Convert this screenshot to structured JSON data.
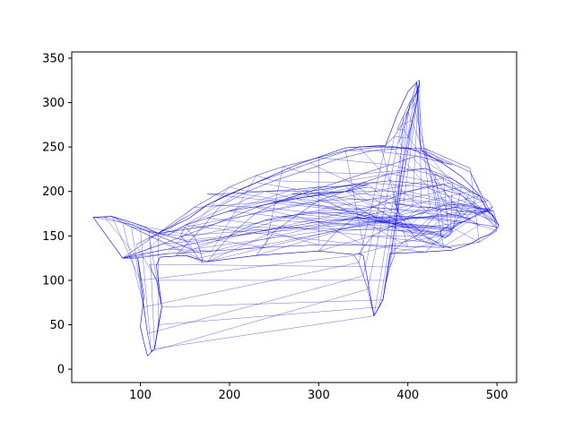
{
  "chart_data": {
    "type": "line",
    "title": "",
    "xlabel": "",
    "ylabel": "",
    "xlim": [
      23,
      522
    ],
    "ylim": [
      -15,
      357
    ],
    "x_ticks": [
      100,
      200,
      300,
      400,
      500
    ],
    "y_ticks": [
      0,
      50,
      100,
      150,
      200,
      250,
      300,
      350
    ],
    "x_tick_labels": [
      "100",
      "200",
      "300",
      "400",
      "500"
    ],
    "y_tick_labels": [
      "0",
      "50",
      "100",
      "150",
      "200",
      "250",
      "300",
      "350"
    ],
    "grid": false,
    "series": [
      {
        "color": "#0000ff",
        "style": "triangulated wireframe mesh",
        "outline": [
          [
            47,
            171
          ],
          [
            80,
            125
          ],
          [
            97,
            125
          ],
          [
            104,
            82
          ],
          [
            100,
            48
          ],
          [
            104,
            30
          ],
          [
            108,
            15
          ],
          [
            116,
            23
          ],
          [
            124,
            70
          ],
          [
            118,
            117
          ],
          [
            122,
            126
          ],
          [
            150,
            128
          ],
          [
            175,
            121
          ],
          [
            230,
            128
          ],
          [
            300,
            133
          ],
          [
            340,
            129
          ],
          [
            345,
            130
          ],
          [
            350,
            128
          ],
          [
            362,
            60
          ],
          [
            372,
            78
          ],
          [
            380,
            130
          ],
          [
            420,
            132
          ],
          [
            450,
            134
          ],
          [
            470,
            141
          ],
          [
            480,
            147
          ],
          [
            492,
            152
          ],
          [
            500,
            158
          ],
          [
            502,
            162
          ],
          [
            496,
            172
          ],
          [
            488,
            180
          ],
          [
            480,
            196
          ],
          [
            470,
            207
          ],
          [
            460,
            217
          ],
          [
            440,
            231
          ],
          [
            415,
            246
          ],
          [
            413,
            262
          ],
          [
            410,
            323
          ],
          [
            400,
            312
          ],
          [
            388,
            286
          ],
          [
            375,
            252
          ],
          [
            330,
            249
          ],
          [
            275,
            230
          ],
          [
            230,
            210
          ],
          [
            195,
            195
          ],
          [
            175,
            185
          ],
          [
            155,
            170
          ],
          [
            120,
            153
          ],
          [
            100,
            162
          ],
          [
            68,
            172
          ],
          [
            47,
            171
          ]
        ],
        "mesh": [
          {
            "x": [
              80,
              120,
              175,
              230,
              290,
              345,
              380,
              420,
              470,
              500
            ],
            "y": [
              125,
              153,
              185,
              210,
              232,
              250,
              251,
              245,
              222,
              162
            ]
          },
          {
            "x": [
              80,
              125,
              180,
              230,
              290,
              340,
              380,
              420,
              460,
              495
            ],
            "y": [
              125,
              141,
              162,
              182,
              200,
              208,
              212,
              208,
              196,
              167
            ]
          },
          {
            "x": [
              80,
              130,
              180,
              240,
              300,
              345,
              390,
              430,
              470,
              500
            ],
            "y": [
              125,
              135,
              146,
              156,
              166,
              170,
              172,
              170,
              165,
              160
            ]
          },
          {
            "x": [
              97,
              130,
              180,
              240,
              300,
              350,
              400,
              440,
              480,
              500
            ],
            "y": [
              125,
              130,
              133,
              137,
              140,
              140,
              138,
              137,
              143,
              156
            ]
          },
          {
            "x": [
              120,
              160,
              200,
              230,
              260,
              300,
              330,
              370,
              420,
              470
            ],
            "y": [
              153,
              182,
              205,
              218,
              228,
              238,
              246,
              250,
              248,
              226
            ]
          },
          {
            "x": [
              140,
              170,
              190,
              220,
              250,
              280,
              320,
              360,
              400,
              440
            ],
            "y": [
              128,
              160,
              184,
              200,
              212,
              222,
              236,
              246,
              249,
              233
            ]
          },
          {
            "x": [
              175,
              200,
              230,
              260,
              290,
              320,
              350,
              380,
              410,
              450
            ],
            "y": [
              121,
              150,
              176,
              190,
              200,
              210,
              220,
              230,
              240,
              230
            ]
          },
          {
            "x": [
              230,
              250,
              280,
              300,
              330,
              350,
              380,
              420,
              450,
              480
            ],
            "y": [
              128,
              155,
              176,
              190,
              200,
              210,
              220,
              226,
              214,
              195
            ]
          },
          {
            "x": [
              300,
              320,
              340,
              360,
              380,
              400,
              420,
              440,
              460,
              485
            ],
            "y": [
              133,
              155,
              170,
              182,
              192,
              200,
              205,
              208,
              200,
              188
            ]
          },
          {
            "x": [
              345,
              360,
              380,
              400,
              420,
              440,
              460,
              480,
              495,
              502
            ],
            "y": [
              130,
              150,
              160,
              170,
              178,
              184,
              186,
              182,
              174,
              162
            ]
          },
          {
            "x": [
              380,
              395,
              410,
              420,
              430,
              440,
              455,
              470,
              488,
              500
            ],
            "y": [
              130,
              143,
              150,
              160,
              172,
              180,
              182,
              178,
              170,
              158
            ]
          },
          {
            "x": [
              420,
              430,
              440,
              450,
              460,
              470,
              480,
              490,
              496,
              500
            ],
            "y": [
              132,
              142,
              150,
              158,
              165,
              170,
              176,
              180,
              178,
              165
            ]
          },
          {
            "x": [
              130,
              150,
              175,
              200,
              230,
              250,
              275,
              300,
              330,
              355
            ],
            "y": [
              150,
              162,
              170,
              178,
              183,
              187,
              192,
              196,
              200,
              205
            ]
          },
          {
            "x": [
              175,
              210,
              240,
              270,
              300,
              330,
              356,
              330,
              300,
              270
            ],
            "y": [
              197,
              198,
              200,
              202,
              205,
              206,
              208,
              200,
              198,
              197
            ]
          },
          {
            "x": [
              385,
              390,
              395,
              400,
              405,
              410,
              420,
              430,
              440,
              450
            ],
            "y": [
              190,
              175,
              168,
              160,
              152,
              146,
              143,
              140,
              138,
              136
            ]
          },
          {
            "x": [
              385,
              395,
              405,
              415,
              425,
              435,
              445,
              460,
              470,
              480
            ],
            "y": [
              185,
              185,
              183,
              182,
              182,
              180,
              175,
              172,
              168,
              162
            ]
          },
          {
            "x": [
              400,
              405,
              410,
              412,
              413,
              410,
              405,
              400,
              395,
              390
            ],
            "y": [
              260,
              280,
              300,
              315,
              325,
              323,
              305,
              290,
              270,
              255
            ]
          },
          {
            "x": [
              375,
              385,
              393,
              400,
              407,
              413,
              410,
              402,
              395,
              388
            ],
            "y": [
              252,
              262,
              275,
              290,
              305,
              322,
              312,
              300,
              285,
              270
            ]
          },
          {
            "x": [
              340,
              345,
              350,
              355,
              362,
              368,
              372,
              376,
              380,
              385
            ],
            "y": [
              128,
              120,
              105,
              90,
              60,
              70,
              78,
              100,
              115,
              128
            ]
          },
          {
            "x": [
              97,
              100,
              104,
              108,
              112,
              116,
              120,
              124,
              118,
              110
            ],
            "y": [
              125,
              100,
              70,
              40,
              20,
              23,
              50,
              70,
              100,
              118
            ]
          },
          {
            "x": [
              47,
              60,
              68,
              80,
              90,
              100,
              110,
              120,
              110,
              95
            ],
            "y": [
              171,
              171,
              172,
              165,
              160,
              158,
              155,
              153,
              148,
              140
            ]
          },
          {
            "x": [
              150,
              160,
              165,
              168,
              170,
              165,
              158,
              150,
              145,
              150
            ],
            "y": [
              160,
              150,
              140,
              130,
              120,
              125,
              135,
              145,
              150,
              160
            ]
          },
          {
            "x": [
              430,
              440,
              450,
              460,
              470,
              480,
              490,
              495,
              490,
              480
            ],
            "y": [
              220,
              215,
              210,
              205,
              200,
              195,
              190,
              182,
              178,
              175
            ]
          },
          {
            "x": [
              436,
              440,
              445,
              448,
              450,
              446,
              442,
              438,
              436,
              438
            ],
            "y": [
              155,
              158,
              160,
              158,
              155,
              150,
              148,
              150,
              152,
              156
            ]
          },
          {
            "x": [
              200,
              220,
              240,
              260,
              280,
              300,
              320,
              340,
              360,
              380
            ],
            "y": [
              150,
              160,
              168,
              172,
              174,
              176,
              176,
              175,
              172,
              168
            ]
          }
        ]
      }
    ]
  }
}
